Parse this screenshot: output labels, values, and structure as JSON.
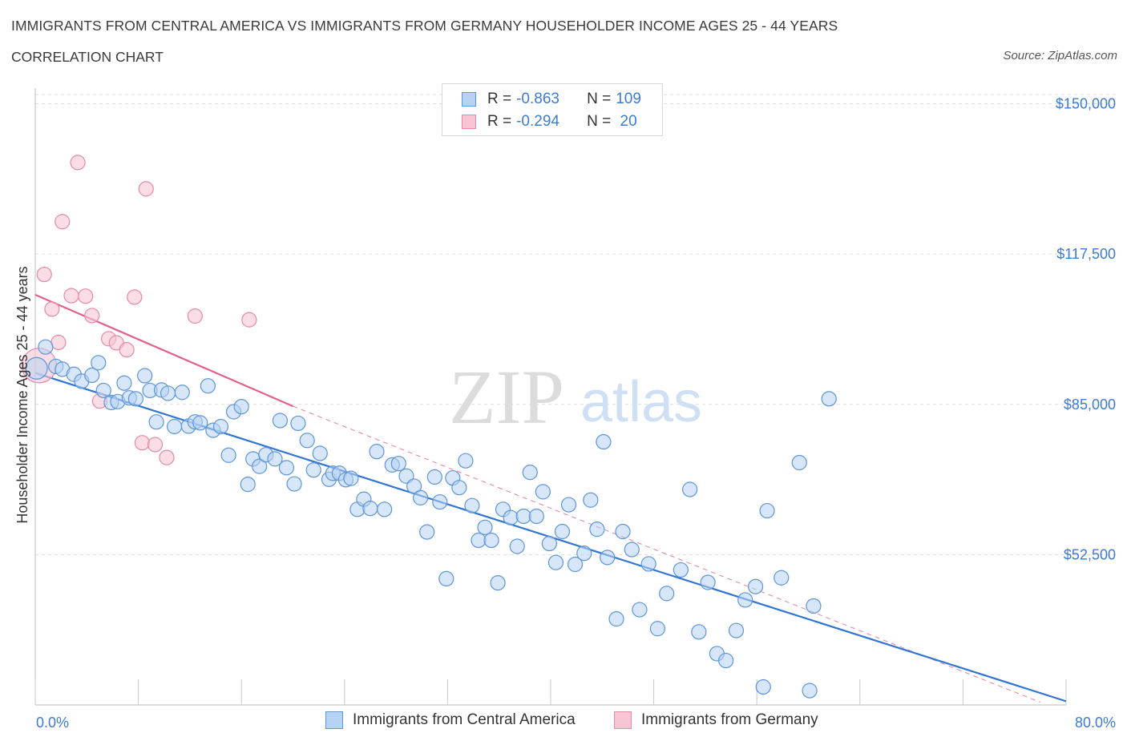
{
  "title": "IMMIGRANTS FROM CENTRAL AMERICA VS IMMIGRANTS FROM GERMANY HOUSEHOLDER INCOME AGES 25 - 44 YEARS",
  "subtitle": "CORRELATION CHART",
  "source": "Source: ZipAtlas.com",
  "watermark": {
    "zip": "ZIP",
    "atlas": "atlas"
  },
  "colors": {
    "blue_fill": "#b7d2f3",
    "blue_stroke": "#5e95d9",
    "blue_line": "#3175d2",
    "pink_fill": "#f6c6d3",
    "pink_stroke": "#e58aa6",
    "pink_line": "#e0628b",
    "tick_text": "#3d7bd4",
    "grid": "#dddddd"
  },
  "legend": {
    "rows": [
      {
        "r_label": "R = ",
        "r_value": "-0.863",
        "n_label": "N = ",
        "n_value": "109"
      },
      {
        "r_label": "R = ",
        "r_value": "-0.294",
        "n_label": "N = ",
        "n_value": " 20"
      }
    ]
  },
  "bottom_legend": {
    "series_a": "Immigrants from Central America",
    "series_b": "Immigrants from Germany"
  },
  "chart_data": {
    "type": "scatter",
    "title": "IMMIGRANTS FROM CENTRAL AMERICA VS IMMIGRANTS FROM GERMANY HOUSEHOLDER INCOME AGES 25 - 44 YEARS",
    "xlabel": "",
    "ylabel": "Householder Income Ages 25 - 44 years",
    "xlim": [
      0,
      80
    ],
    "ylim": [
      20000,
      152000
    ],
    "x_tick_labels": [
      "0.0%",
      "80.0%"
    ],
    "y_ticks": [
      52500,
      85000,
      117500,
      150000
    ],
    "y_tick_labels": [
      "$52,500",
      "$85,000",
      "$117,500",
      "$150,000"
    ],
    "grid": true,
    "series": [
      {
        "name": "Immigrants from Central America",
        "color": "#5e95d9",
        "trend": {
          "x": [
            0,
            80
          ],
          "y": [
            91800,
            20800
          ]
        },
        "points": [
          [
            0.1,
            92.8,
            1.5
          ],
          [
            0.8,
            97.4,
            1.0
          ],
          [
            1.6,
            93.2,
            1.0
          ],
          [
            2.1,
            92.6,
            1.0
          ],
          [
            3.0,
            91.5,
            1.0
          ],
          [
            3.6,
            90.0,
            1.0
          ],
          [
            4.4,
            91.3,
            1.0
          ],
          [
            4.9,
            94.0,
            1.0
          ],
          [
            5.3,
            88.0,
            1.0
          ],
          [
            5.9,
            85.4,
            1.0
          ],
          [
            6.4,
            85.6,
            1.0
          ],
          [
            6.9,
            89.6,
            1.0
          ],
          [
            7.3,
            86.4,
            1.0
          ],
          [
            7.8,
            86.2,
            1.0
          ],
          [
            8.5,
            91.2,
            1.0
          ],
          [
            8.9,
            88.0,
            1.0
          ],
          [
            9.4,
            81.2,
            1.0
          ],
          [
            9.8,
            88.1,
            1.0
          ],
          [
            10.3,
            87.4,
            1.0
          ],
          [
            10.8,
            80.2,
            1.0
          ],
          [
            11.4,
            87.6,
            1.0
          ],
          [
            11.9,
            80.3,
            1.0
          ],
          [
            12.4,
            81.2,
            1.0
          ],
          [
            12.8,
            81.0,
            1.0
          ],
          [
            13.4,
            89.0,
            1.0
          ],
          [
            13.8,
            79.4,
            1.0
          ],
          [
            14.4,
            80.2,
            1.0
          ],
          [
            15.0,
            74.0,
            1.0
          ],
          [
            15.4,
            83.4,
            1.0
          ],
          [
            16.0,
            84.5,
            1.0
          ],
          [
            16.5,
            67.7,
            1.0
          ],
          [
            16.9,
            73.2,
            1.0
          ],
          [
            17.4,
            71.6,
            1.0
          ],
          [
            17.9,
            74.1,
            1.0
          ],
          [
            18.6,
            73.2,
            1.0
          ],
          [
            19.0,
            81.5,
            1.0
          ],
          [
            19.5,
            71.3,
            1.0
          ],
          [
            20.1,
            67.8,
            1.0
          ],
          [
            20.4,
            80.9,
            1.0
          ],
          [
            21.1,
            77.2,
            1.0
          ],
          [
            21.6,
            70.8,
            1.0
          ],
          [
            22.1,
            74.4,
            1.0
          ],
          [
            22.8,
            68.8,
            1.0
          ],
          [
            23.1,
            70.1,
            1.0
          ],
          [
            23.6,
            70.1,
            1.0
          ],
          [
            24.1,
            68.7,
            1.0
          ],
          [
            24.5,
            69.0,
            1.0
          ],
          [
            25.0,
            62.3,
            1.0
          ],
          [
            25.5,
            64.5,
            1.0
          ],
          [
            26.0,
            62.5,
            1.0
          ],
          [
            26.5,
            74.8,
            1.0
          ],
          [
            27.1,
            62.3,
            1.0
          ],
          [
            27.7,
            71.9,
            1.0
          ],
          [
            28.2,
            72.2,
            1.0
          ],
          [
            28.8,
            69.5,
            1.0
          ],
          [
            29.4,
            67.3,
            1.0
          ],
          [
            29.9,
            64.8,
            1.0
          ],
          [
            30.4,
            57.4,
            1.0
          ],
          [
            31.0,
            69.3,
            1.0
          ],
          [
            31.4,
            63.9,
            1.0
          ],
          [
            31.9,
            47.3,
            1.0
          ],
          [
            32.4,
            69.1,
            1.0
          ],
          [
            32.9,
            67.0,
            1.0
          ],
          [
            33.4,
            72.8,
            1.0
          ],
          [
            33.9,
            63.1,
            1.0
          ],
          [
            34.4,
            55.6,
            1.0
          ],
          [
            34.9,
            58.4,
            1.0
          ],
          [
            35.4,
            55.6,
            1.0
          ],
          [
            35.9,
            46.4,
            1.0
          ],
          [
            36.3,
            62.3,
            1.0
          ],
          [
            36.9,
            60.5,
            1.0
          ],
          [
            37.4,
            54.3,
            1.0
          ],
          [
            37.9,
            60.8,
            1.0
          ],
          [
            38.4,
            70.3,
            1.0
          ],
          [
            38.9,
            60.8,
            1.0
          ],
          [
            39.4,
            66.1,
            1.0
          ],
          [
            39.9,
            54.9,
            1.0
          ],
          [
            40.4,
            50.8,
            1.0
          ],
          [
            40.9,
            57.5,
            1.0
          ],
          [
            41.4,
            63.3,
            1.0
          ],
          [
            41.9,
            50.4,
            1.0
          ],
          [
            42.6,
            52.8,
            1.0
          ],
          [
            43.1,
            64.3,
            1.0
          ],
          [
            43.6,
            58.0,
            1.0
          ],
          [
            44.1,
            76.9,
            1.0
          ],
          [
            44.4,
            51.9,
            1.0
          ],
          [
            45.1,
            38.6,
            1.0
          ],
          [
            45.6,
            57.5,
            1.0
          ],
          [
            46.3,
            53.6,
            1.0
          ],
          [
            46.9,
            40.6,
            1.0
          ],
          [
            47.6,
            50.5,
            1.0
          ],
          [
            48.3,
            36.5,
            1.0
          ],
          [
            49.0,
            44.1,
            1.0
          ],
          [
            50.1,
            49.2,
            1.0
          ],
          [
            50.8,
            66.6,
            1.0
          ],
          [
            51.5,
            35.8,
            1.0
          ],
          [
            52.2,
            46.5,
            1.0
          ],
          [
            52.9,
            31.1,
            1.0
          ],
          [
            53.6,
            29.6,
            1.0
          ],
          [
            54.4,
            36.1,
            1.0
          ],
          [
            55.1,
            42.7,
            1.0
          ],
          [
            55.9,
            45.6,
            1.0
          ],
          [
            56.5,
            23.9,
            1.0
          ],
          [
            56.8,
            62.0,
            1.0
          ],
          [
            57.9,
            47.5,
            1.0
          ],
          [
            59.3,
            72.4,
            1.0
          ],
          [
            60.4,
            41.4,
            1.0
          ],
          [
            60.1,
            23.1,
            1.0
          ],
          [
            61.6,
            86.2,
            1.0
          ]
        ]
      },
      {
        "name": "Immigrants from Germany",
        "color": "#e58aa6",
        "trend": {
          "x": [
            0,
            20
          ],
          "y": [
            108700,
            84600
          ]
        },
        "trend_extension": {
          "x": [
            20,
            78
          ],
          "y": [
            84600,
            20600
          ]
        },
        "points": [
          [
            0.3,
            93.4,
            2.4
          ],
          [
            0.7,
            113.1,
            1.0
          ],
          [
            1.3,
            105.6,
            1.0
          ],
          [
            1.8,
            98.4,
            1.0
          ],
          [
            2.1,
            124.5,
            1.0
          ],
          [
            2.8,
            108.5,
            1.0
          ],
          [
            3.3,
            137.3,
            1.0
          ],
          [
            3.9,
            108.4,
            1.0
          ],
          [
            4.4,
            104.2,
            1.0
          ],
          [
            5.0,
            85.7,
            1.0
          ],
          [
            5.7,
            99.2,
            1.0
          ],
          [
            6.3,
            98.3,
            1.0
          ],
          [
            7.1,
            96.8,
            1.0
          ],
          [
            7.7,
            108.2,
            1.0
          ],
          [
            8.3,
            76.7,
            1.0
          ],
          [
            8.6,
            131.6,
            1.0
          ],
          [
            9.3,
            76.3,
            1.0
          ],
          [
            10.2,
            73.5,
            1.0
          ],
          [
            12.4,
            104.1,
            1.0
          ],
          [
            16.6,
            103.3,
            1.0
          ]
        ]
      }
    ]
  }
}
